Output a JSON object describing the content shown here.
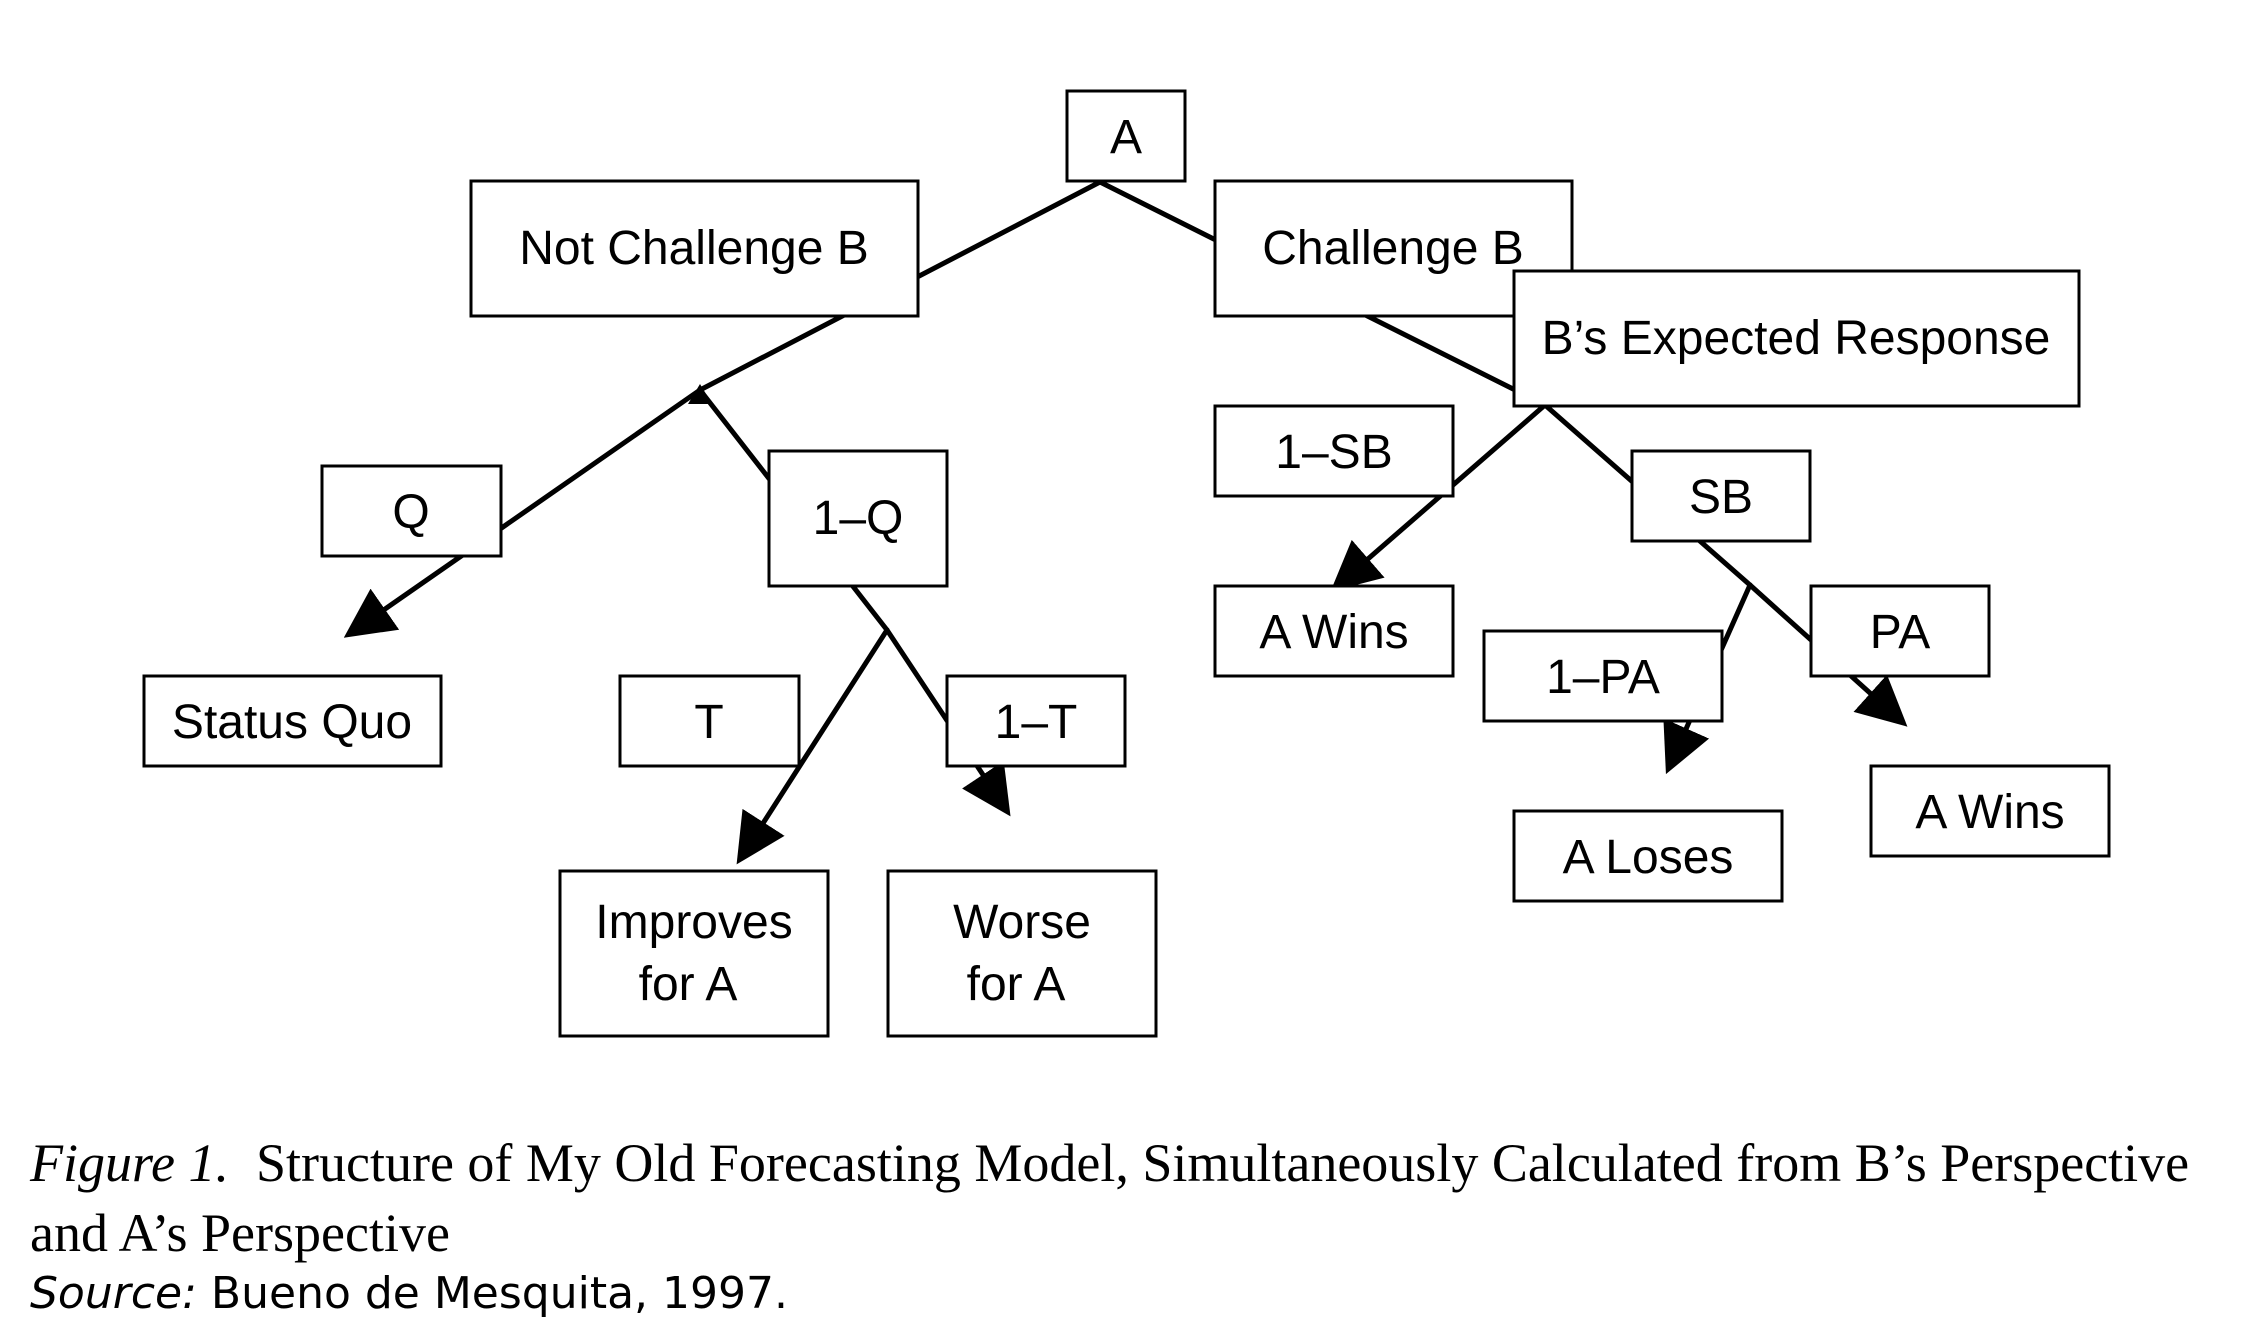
{
  "nodes": {
    "a": "A",
    "not_challenge": "Not Challenge B",
    "challenge": "Challenge B",
    "b_expected": "B’s Expected Response",
    "q": "Q",
    "one_minus_q": "1–Q",
    "one_minus_sb": "1–SB",
    "sb": "SB",
    "status_quo": "Status Quo",
    "t": "T",
    "one_minus_t": "1–T",
    "a_wins_left": "A Wins",
    "one_minus_pa": "1–PA",
    "pa": "PA",
    "improves_line1": "Improves",
    "improves_line2": "for A",
    "worse_line1": "Worse",
    "worse_line2": "for A",
    "a_loses": "A Loses",
    "a_wins_right": "A Wins"
  },
  "caption": {
    "label": "Figure 1.",
    "text": "Structure of My Old Forecasting Model, Simultaneously Calculated from B’s Perspective and A’s Perspective"
  },
  "source": {
    "label": "Source:",
    "text": "Bueno de Mesquita, 1997."
  }
}
